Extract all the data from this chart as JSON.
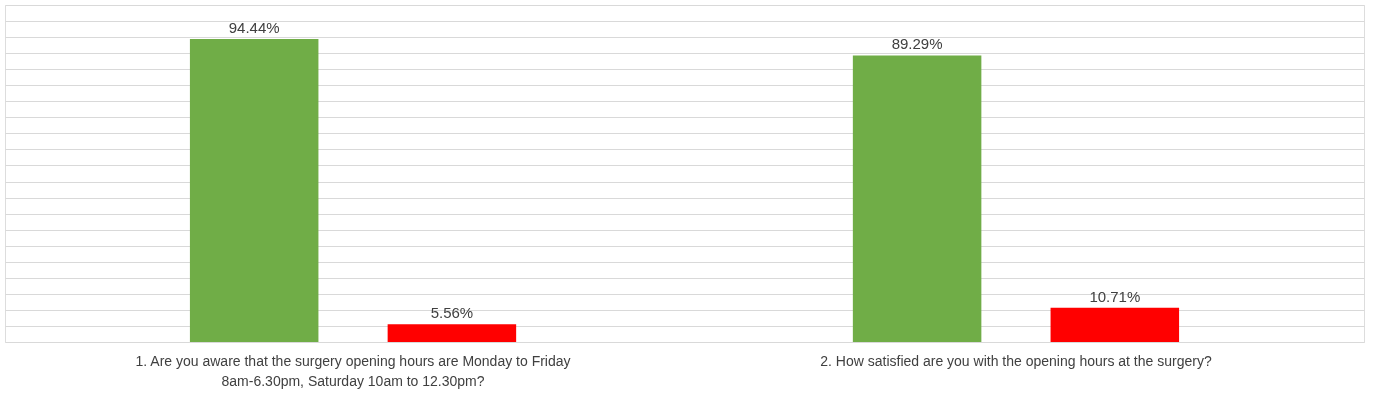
{
  "chart_data": {
    "type": "bar",
    "categories": [
      "1. Are you aware that the surgery opening hours are Monday to Friday 8am-6.30pm, Saturday 10am to 12.30pm?",
      "2. How satisfied are you with the opening hours at the surgery?"
    ],
    "series": [
      {
        "color": "#70ad47",
        "values": [
          94.44,
          89.29
        ],
        "value_labels": [
          "94.44%",
          "89.29%"
        ]
      },
      {
        "color": "#ff0000",
        "values": [
          5.56,
          10.71
        ],
        "value_labels": [
          "5.56%",
          "10.71%"
        ]
      }
    ],
    "ylim": [
      0,
      105
    ],
    "yticks": [
      {
        "value": 0,
        "label": null
      },
      {
        "value": 5,
        "label": null
      },
      {
        "value": 10,
        "label": null
      },
      {
        "value": 15,
        "label": null
      },
      {
        "value": 20,
        "label": null
      },
      {
        "value": 25,
        "label": null
      },
      {
        "value": 30,
        "label": null
      },
      {
        "value": 35,
        "label": null
      },
      {
        "value": 40,
        "label": null
      },
      {
        "value": 45,
        "label": null
      },
      {
        "value": 50,
        "label": null
      },
      {
        "value": 55,
        "label": null
      },
      {
        "value": 60,
        "label": null
      },
      {
        "value": 65,
        "label": null
      },
      {
        "value": 70,
        "label": null
      },
      {
        "value": 75,
        "label": null
      },
      {
        "value": 80,
        "label": null
      },
      {
        "value": 85,
        "label": null
      },
      {
        "value": 90,
        "label": null
      },
      {
        "value": 95,
        "label": null
      },
      {
        "value": 100,
        "label": null
      },
      {
        "value": 105,
        "label": null
      }
    ],
    "grid": "y",
    "tick_labels": "x"
  }
}
